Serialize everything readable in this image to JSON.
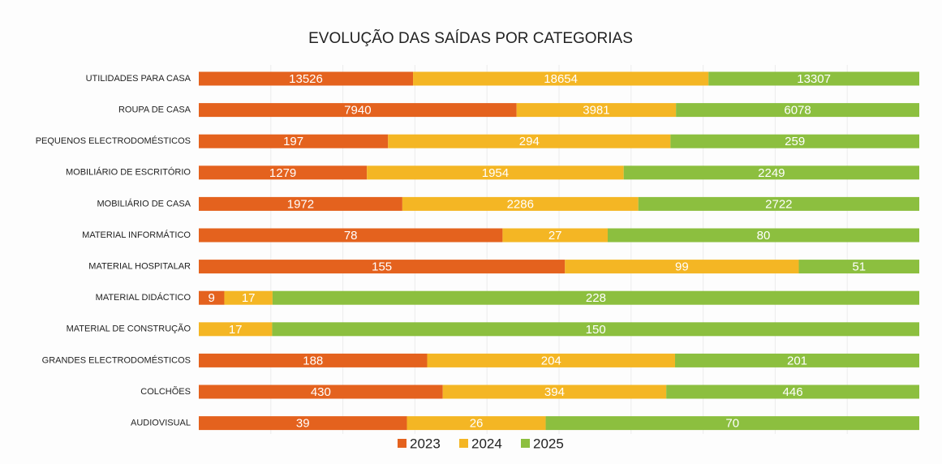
{
  "chart_data": {
    "type": "stacked-bar-100",
    "title": "EVOLUÇÃO DAS SAÍDAS POR CATEGORIAS",
    "categories": [
      "UTILIDADES PARA CASA",
      "ROUPA DE CASA",
      "PEQUENOS ELECTRODOMÉSTICOS",
      "MOBILIÁRIO DE ESCRITÓRIO",
      "MOBILIÁRIO DE CASA",
      "MATERIAL INFORMÁTICO",
      "MATERIAL HOSPITALAR",
      "MATERIAL DIDÁCTICO",
      "MATERIAL DE CONSTRUÇÃO",
      "GRANDES ELECTRODOMÉSTICOS",
      "COLCHÕES",
      "AUDIOVISUAL"
    ],
    "series": [
      {
        "name": "2023",
        "color": "#e4621e",
        "values": [
          13526,
          7940,
          197,
          1279,
          1972,
          78,
          155,
          9,
          0,
          188,
          430,
          39
        ]
      },
      {
        "name": "2024",
        "color": "#f4b624",
        "values": [
          18654,
          3981,
          294,
          1954,
          2286,
          27,
          99,
          17,
          17,
          204,
          394,
          26
        ]
      },
      {
        "name": "2025",
        "color": "#8cbf3f",
        "values": [
          13307,
          6078,
          259,
          2249,
          2722,
          80,
          51,
          228,
          150,
          201,
          446,
          70
        ]
      }
    ],
    "legend": "bottom"
  }
}
